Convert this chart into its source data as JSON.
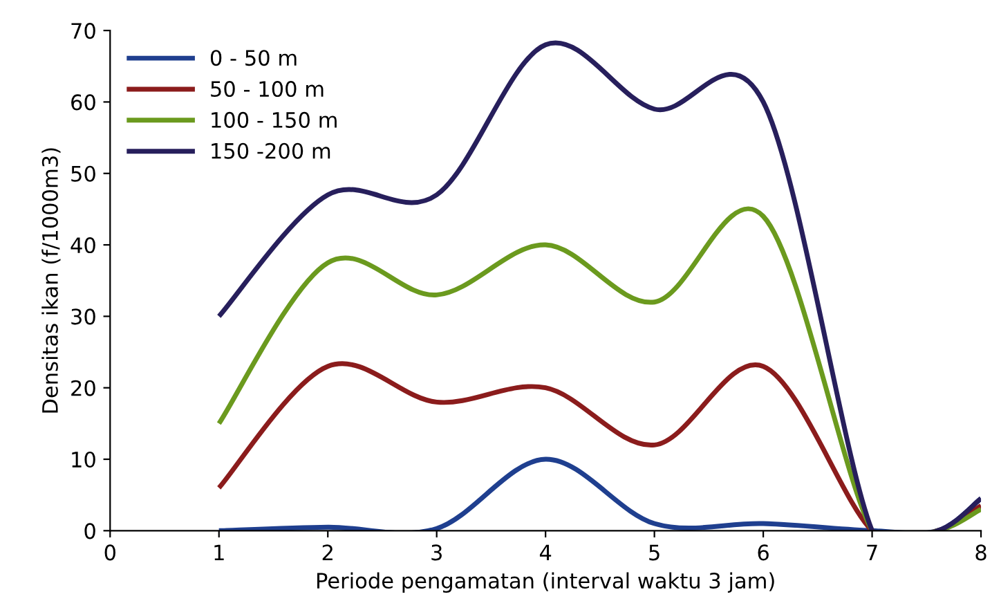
{
  "chart_data": {
    "type": "line",
    "xlabel": "Periode pengamatan (interval waktu 3 jam)",
    "ylabel": "Densitas ikan (f/1000m3)",
    "x": [
      1,
      2,
      3,
      4,
      5,
      6,
      7,
      7.6,
      8
    ],
    "series": [
      {
        "name": "0 - 50 m",
        "color": "#1f3f8f",
        "values": [
          0,
          0.5,
          0.3,
          10,
          1,
          1,
          0,
          0,
          4.5
        ]
      },
      {
        "name": "50 - 100 m",
        "color": "#8b1c1c",
        "values": [
          6,
          23,
          18,
          20,
          12,
          23,
          0,
          0,
          3.5
        ]
      },
      {
        "name": "100 - 150 m",
        "color": "#6b9a1e",
        "values": [
          15,
          37.5,
          33,
          40,
          32,
          44,
          0,
          0,
          3
        ]
      },
      {
        "name": "150 -200 m",
        "color": "#271f5c",
        "values": [
          30,
          47,
          47,
          68,
          59,
          60,
          0,
          0,
          4.5
        ]
      }
    ],
    "xlim": [
      0,
      8
    ],
    "xticks": [
      0,
      1,
      2,
      3,
      4,
      5,
      6,
      7,
      8
    ],
    "ylim": [
      0,
      70
    ],
    "yticks": [
      0,
      10,
      20,
      30,
      40,
      50,
      60,
      70
    ],
    "grid": false,
    "legend": "top left",
    "marker": "none",
    "line_style": "solid"
  }
}
